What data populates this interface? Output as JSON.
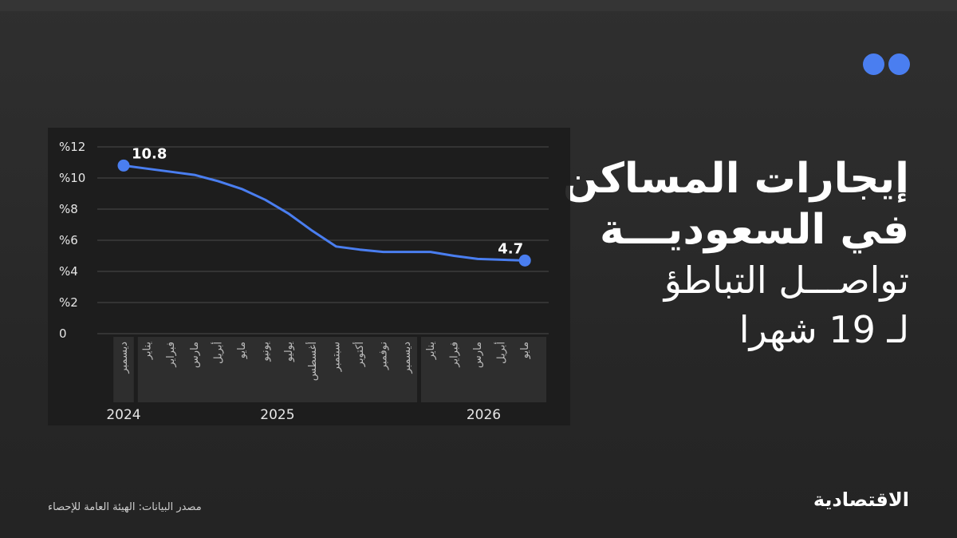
{
  "title": {
    "line1": "إيجارات المساكن",
    "line2": "في السعوديـــة",
    "line3": "تواصـــل التباطؤ",
    "line4": "لـ 19 شهرا"
  },
  "source": "مصدر البيانات: الهيئة العامة للإحصاء",
  "logo": "الاقتصادية",
  "colors": {
    "accent": "#4a7ef0",
    "background": "#262626",
    "text": "#ffffff"
  },
  "chart_data": {
    "type": "line",
    "title": "",
    "xlabel": "",
    "ylabel": "",
    "ylim": [
      0,
      12
    ],
    "yticks": [
      "0",
      "%2",
      "%4",
      "%6",
      "%8",
      "%10",
      "%12"
    ],
    "grid": true,
    "categories": [
      "ديسمبر",
      "يناير",
      "فبراير",
      "مارس",
      "أبريل",
      "مايو",
      "يونيو",
      "يوليو",
      "أغسطس",
      "سبتمبر",
      "أكتوبر",
      "نوفمبر",
      "ديسمبر",
      "يناير",
      "فبراير",
      "مارس",
      "أبريل",
      "مايو"
    ],
    "years": [
      {
        "label": "2024",
        "start": 0,
        "end": 0
      },
      {
        "label": "2025",
        "start": 1,
        "end": 12
      },
      {
        "label": "2026",
        "start": 13,
        "end": 17
      }
    ],
    "series": [
      {
        "values": [
          10.8,
          10.6,
          10.4,
          10.2,
          9.8,
          9.3,
          8.6,
          7.7,
          6.6,
          5.6,
          5.4,
          5.25,
          5.25,
          5.25,
          5.0,
          4.8,
          4.75,
          4.7
        ]
      }
    ],
    "annotations": [
      {
        "index": 0,
        "text": "10.8"
      },
      {
        "index": 17,
        "text": "4.7"
      }
    ]
  }
}
